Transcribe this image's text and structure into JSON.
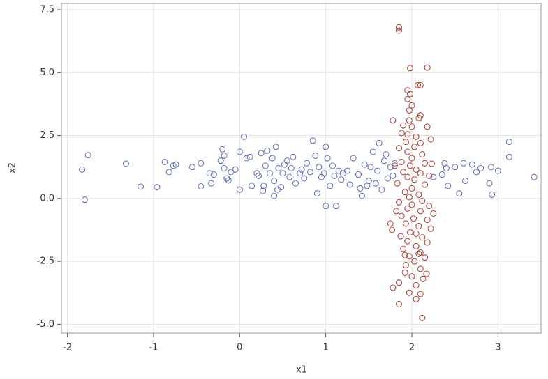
{
  "chart_data": {
    "type": "scatter",
    "x_label": "x1",
    "y_label": "x2",
    "xlim": [
      -2.07,
      3.5
    ],
    "ylim": [
      -5.35,
      7.75
    ],
    "xticks": [
      -2,
      -1,
      0,
      1,
      2,
      3
    ],
    "yticks": [
      7.5,
      {
        "value": 5,
        "label": "5.0"
      },
      2.5,
      {
        "value": 0,
        "label": "0.0"
      },
      -2.5,
      {
        "value": -5,
        "label": "-5.0"
      }
    ],
    "grid": true,
    "series": [
      {
        "color": "#5b6bb5",
        "x": [
          -1.83,
          -1.8,
          -1.76,
          -1.32,
          -1.15,
          -0.96,
          -0.87,
          -0.82,
          -0.77,
          -0.74,
          -0.55,
          -0.45,
          -0.45,
          -0.35,
          -0.33,
          -0.3,
          -0.22,
          -0.2,
          -0.18,
          -0.18,
          -0.15,
          -0.13,
          -0.1,
          -0.05,
          0.0,
          0.0,
          0.05,
          0.08,
          0.12,
          0.14,
          0.2,
          0.22,
          0.25,
          0.27,
          0.28,
          0.3,
          0.32,
          0.35,
          0.38,
          0.4,
          0.4,
          0.42,
          0.44,
          0.45,
          0.48,
          0.5,
          0.52,
          0.55,
          0.58,
          0.6,
          0.62,
          0.65,
          0.7,
          0.72,
          0.75,
          0.78,
          0.82,
          0.85,
          0.88,
          0.9,
          0.92,
          0.95,
          0.98,
          1.0,
          1.0,
          1.02,
          1.05,
          1.08,
          1.1,
          1.12,
          1.15,
          1.18,
          1.2,
          1.25,
          1.28,
          1.32,
          1.38,
          1.4,
          1.42,
          1.45,
          1.48,
          1.5,
          1.52,
          1.55,
          1.58,
          1.6,
          1.62,
          1.65,
          1.68,
          1.7,
          1.72,
          1.75,
          1.78,
          1.8,
          2.25,
          2.35,
          2.38,
          2.4,
          2.42,
          2.5,
          2.55,
          2.6,
          2.62,
          2.7,
          2.75,
          2.8,
          2.9,
          2.92,
          2.93,
          3.0,
          3.13,
          3.13,
          3.42
        ],
        "y": [
          1.15,
          -0.05,
          1.72,
          1.38,
          0.47,
          0.45,
          1.45,
          1.05,
          1.3,
          1.35,
          1.25,
          0.48,
          1.4,
          1.0,
          0.6,
          0.95,
          1.5,
          1.95,
          1.7,
          1.2,
          0.8,
          0.72,
          1.05,
          1.15,
          1.85,
          0.35,
          2.45,
          1.6,
          1.65,
          0.5,
          1.0,
          0.9,
          1.8,
          0.3,
          0.5,
          1.3,
          1.9,
          1.0,
          1.6,
          0.1,
          0.7,
          2.05,
          0.35,
          1.2,
          0.45,
          1.0,
          1.35,
          1.5,
          0.85,
          1.2,
          1.65,
          0.6,
          1.0,
          1.15,
          0.8,
          1.4,
          1.05,
          2.3,
          1.7,
          0.2,
          1.25,
          0.85,
          1.0,
          -0.3,
          2.05,
          1.6,
          0.5,
          1.3,
          0.9,
          -0.3,
          1.1,
          0.75,
          1.0,
          1.1,
          0.55,
          1.6,
          0.95,
          0.4,
          0.1,
          1.35,
          0.5,
          0.7,
          1.25,
          1.85,
          0.6,
          1.1,
          2.2,
          0.35,
          1.5,
          1.75,
          0.8,
          1.25,
          0.9,
          1.4,
          0.85,
          0.95,
          1.4,
          1.2,
          0.5,
          1.25,
          0.2,
          1.4,
          0.7,
          1.35,
          1.05,
          1.2,
          0.6,
          1.25,
          0.15,
          1.1,
          1.65,
          2.25,
          0.85
        ]
      },
      {
        "color": "#a83a2c",
        "x": [
          1.85,
          1.85,
          2.18,
          1.98,
          2.1,
          2.07,
          1.95,
          1.98,
          1.95,
          2.0,
          1.97,
          2.1,
          1.97,
          2.08,
          1.78,
          1.9,
          2.18,
          1.88,
          1.95,
          2.05,
          2.22,
          1.93,
          2.1,
          2.03,
          1.85,
          1.95,
          2.12,
          2.0,
          1.88,
          2.15,
          2.23,
          1.98,
          2.05,
          1.9,
          2.1,
          1.95,
          2.03,
          1.83,
          2.15,
          2.0,
          1.92,
          2.08,
          1.97,
          2.12,
          1.85,
          2.0,
          1.95,
          2.1,
          2.25,
          1.88,
          2.02,
          2.18,
          1.93,
          1.75,
          2.08,
          1.77,
          2.22,
          1.98,
          1.87,
          2.12,
          1.95,
          2.18,
          2.05,
          1.9,
          2.1,
          1.97,
          2.15,
          2.03,
          1.93,
          2.1,
          1.92,
          2.17,
          2.0,
          2.13,
          1.85,
          2.05,
          1.78,
          1.97,
          2.1,
          2.05,
          1.85,
          2.12,
          2.08,
          1.82,
          2.2,
          1.8,
          2.2,
          2.0,
          1.92,
          2.05
        ],
        "y": [
          6.8,
          6.67,
          5.2,
          5.18,
          4.5,
          4.5,
          4.3,
          4.15,
          3.95,
          3.7,
          3.5,
          3.3,
          3.1,
          3.2,
          3.1,
          2.9,
          2.85,
          2.6,
          2.55,
          2.45,
          2.35,
          2.25,
          2.2,
          2.05,
          2.0,
          1.85,
          1.75,
          1.6,
          1.45,
          1.4,
          1.38,
          1.3,
          1.15,
          1.05,
          1.0,
          0.85,
          0.75,
          0.6,
          0.55,
          0.4,
          0.25,
          0.15,
          0.05,
          -0.1,
          -0.15,
          -0.25,
          -0.4,
          -0.5,
          -0.6,
          -0.7,
          -0.8,
          -0.85,
          -1.0,
          -1.0,
          -1.1,
          -1.25,
          -1.2,
          -1.35,
          -1.5,
          -1.55,
          -1.7,
          -1.75,
          -1.9,
          -2.0,
          -2.15,
          -2.3,
          -2.35,
          -2.5,
          -2.65,
          -2.8,
          -2.95,
          -3.0,
          -3.1,
          -3.2,
          -3.35,
          -3.45,
          -3.55,
          -3.75,
          -3.8,
          -4.0,
          -4.2,
          -4.75,
          -2.2,
          -0.5,
          0.9,
          1.3,
          -0.3,
          2.85,
          -2.25,
          -1.4
        ]
      }
    ]
  }
}
